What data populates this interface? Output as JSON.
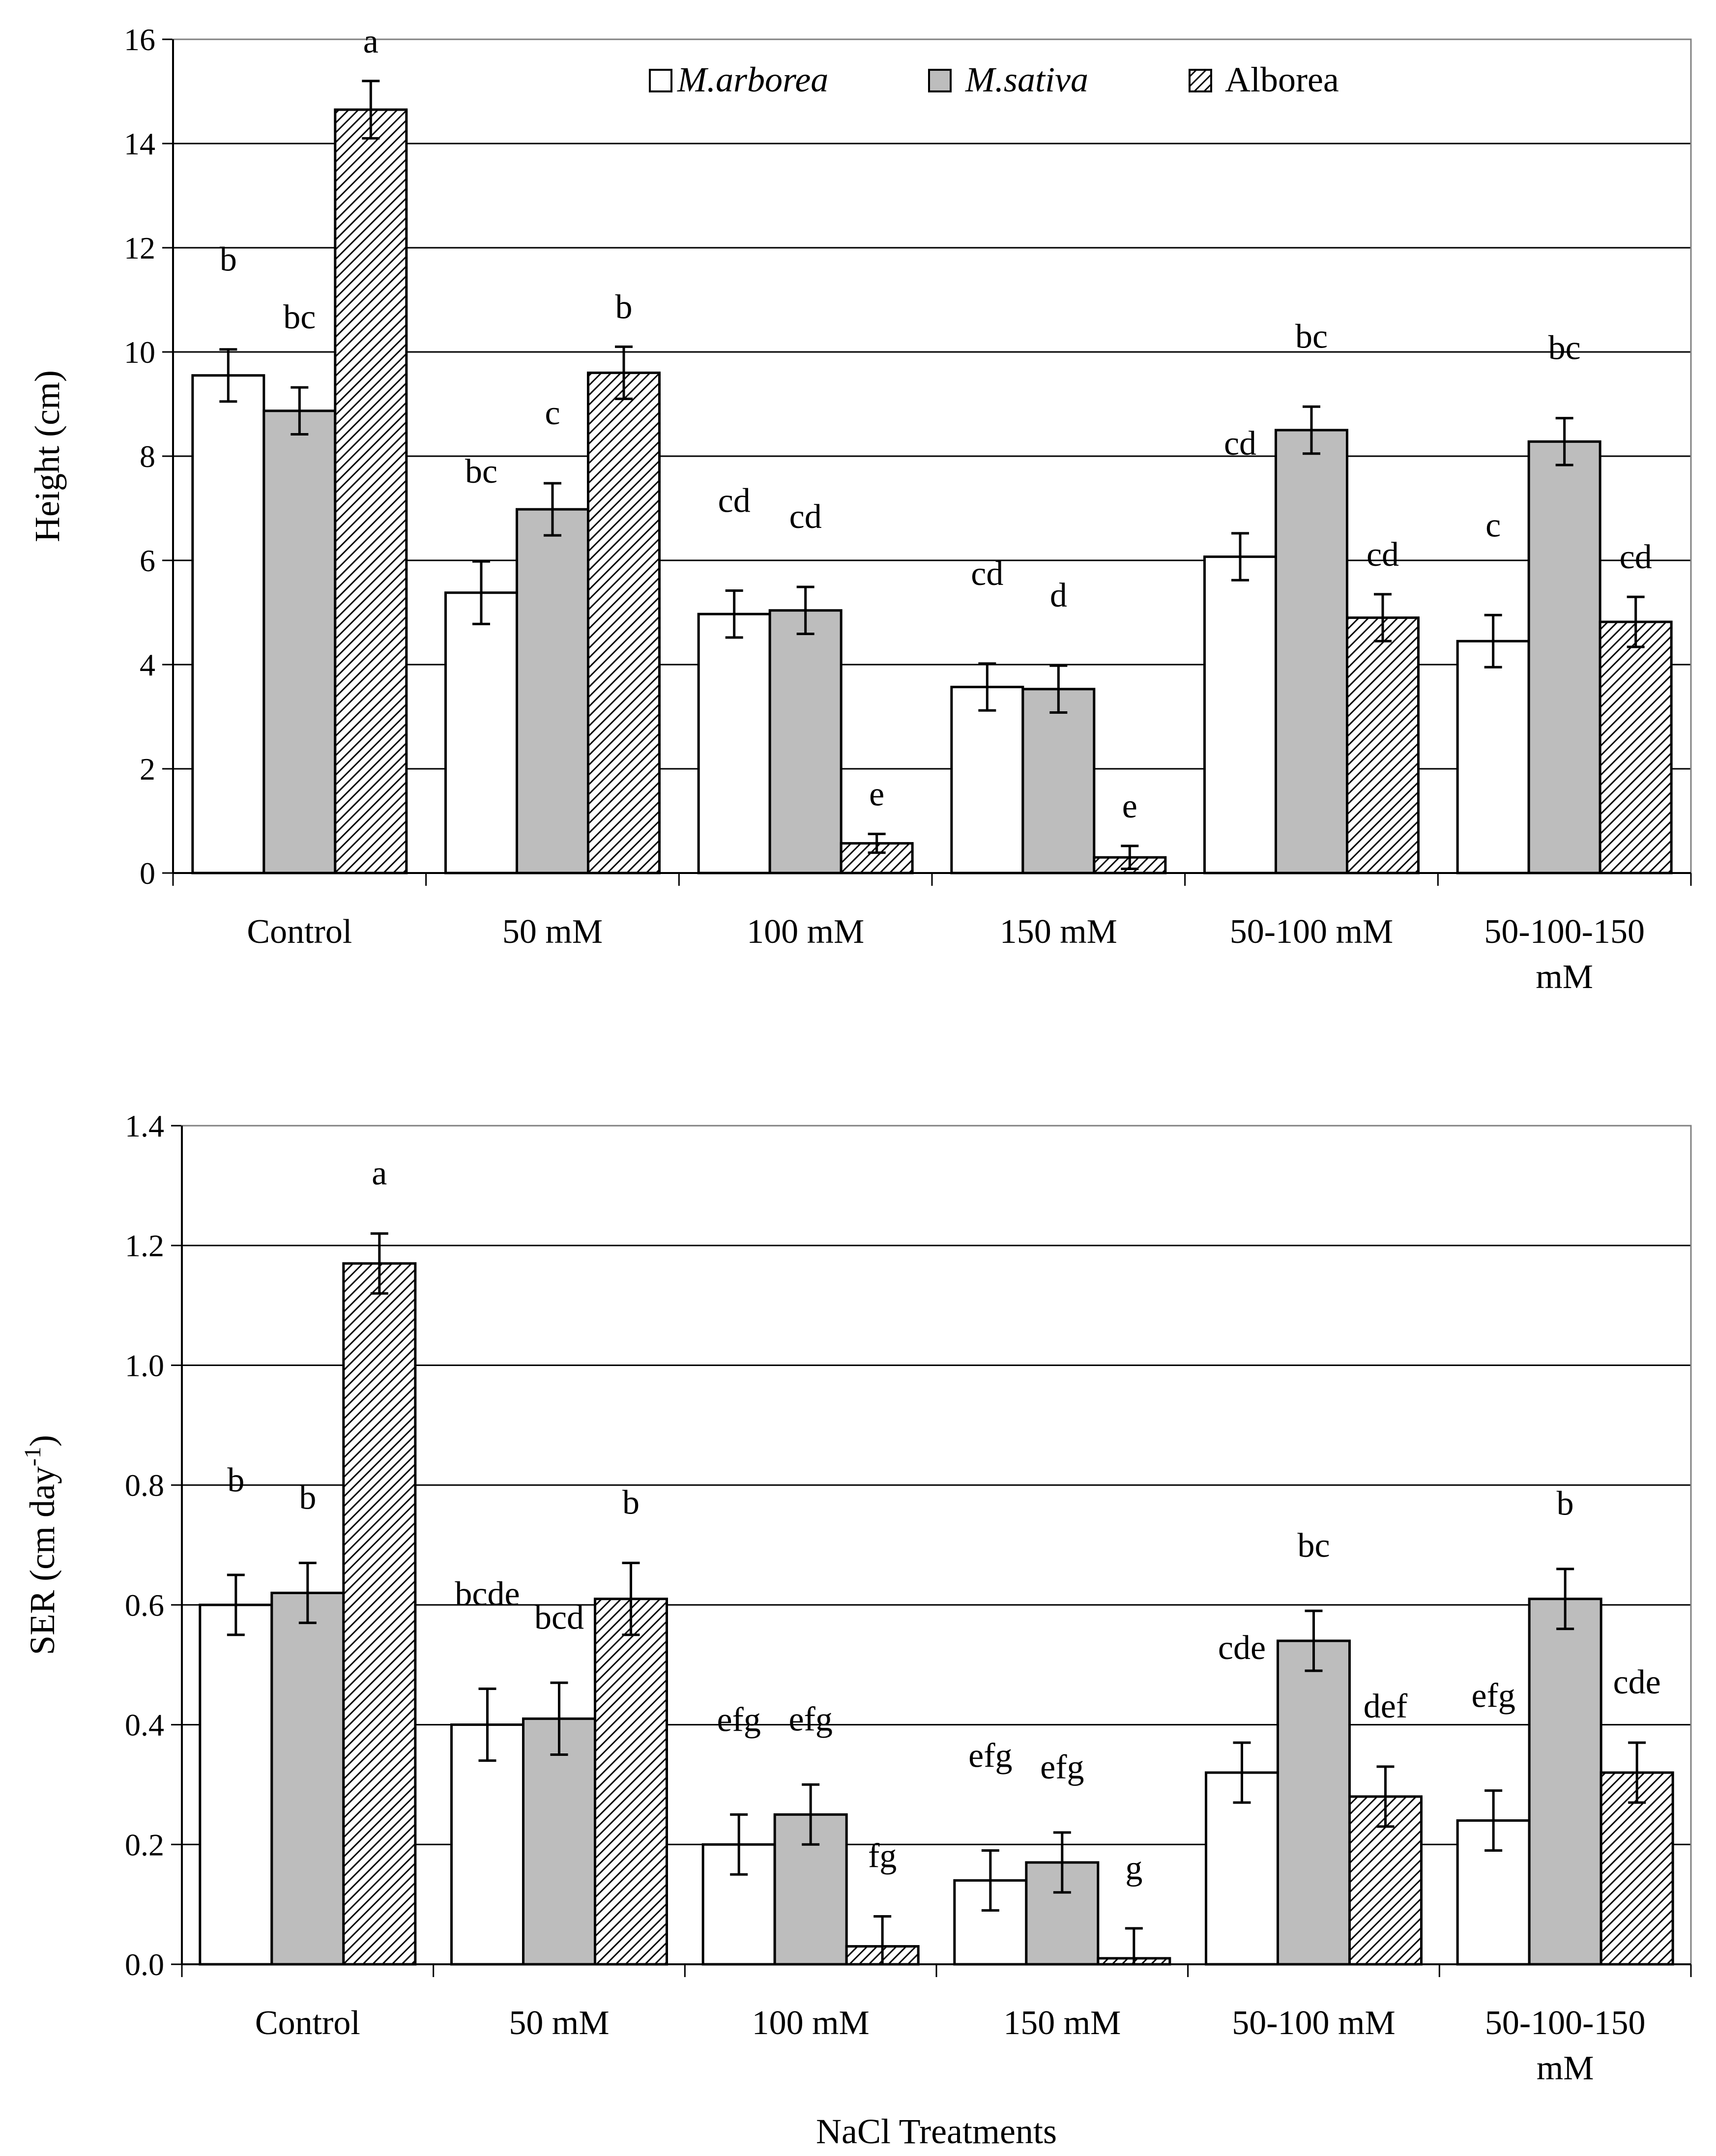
{
  "chart_data": [
    {
      "type": "bar",
      "ylabel": "Height (cm)",
      "xlabel": "",
      "ylim": [
        0,
        16
      ],
      "yticks": [
        0,
        2,
        4,
        6,
        8,
        10,
        12,
        14,
        16
      ],
      "ytick_labels": [
        "0",
        "2",
        "4",
        "6",
        "8",
        "10",
        "12",
        "14",
        "16"
      ],
      "grid": true,
      "legend_position": "top-right",
      "categories": [
        [
          "Control"
        ],
        [
          "50 mM"
        ],
        [
          "100 mM"
        ],
        [
          "150 mM"
        ],
        [
          "50-100 mM"
        ],
        [
          "50-100-150",
          "mM"
        ]
      ],
      "series": [
        {
          "name": "M.arborea",
          "italic": true,
          "fill": "white",
          "values": [
            9.55,
            5.38,
            4.97,
            3.57,
            6.07,
            4.45
          ],
          "errors": [
            0.5,
            0.6,
            0.45,
            0.45,
            0.45,
            0.5
          ],
          "letters": [
            "b",
            "bc",
            "cd",
            "cd",
            "cd",
            "c"
          ]
        },
        {
          "name": "M.sativa",
          "italic": true,
          "fill": "gray",
          "values": [
            8.87,
            6.98,
            5.04,
            3.53,
            8.5,
            8.28
          ],
          "errors": [
            0.45,
            0.5,
            0.45,
            0.45,
            0.45,
            0.45
          ],
          "letters": [
            "bc",
            "c",
            "cd",
            "d",
            "bc",
            "bc"
          ]
        },
        {
          "name": "Alborea",
          "italic": false,
          "fill": "hatch",
          "values": [
            14.65,
            9.6,
            0.57,
            0.3,
            4.9,
            4.82
          ],
          "errors": [
            0.55,
            0.5,
            0.18,
            0.22,
            0.45,
            0.48
          ],
          "letters": [
            "a",
            "b",
            "e",
            "e",
            "cd",
            "cd"
          ]
        }
      ]
    },
    {
      "type": "bar",
      "ylabel": "SER (cm day-1)",
      "ylabel_main": "SER (cm day",
      "ylabel_sup": "-1",
      "ylabel_close": ")",
      "xlabel": "NaCl Treatments",
      "ylim": [
        0,
        1.4
      ],
      "yticks": [
        0,
        0.2,
        0.4,
        0.6,
        0.8,
        1.0,
        1.2,
        1.4
      ],
      "ytick_labels": [
        "0.0",
        "0.2",
        "0.4",
        "0.6",
        "0.8",
        "1.0",
        "1.2",
        "1.4"
      ],
      "grid": true,
      "categories": [
        [
          "Control"
        ],
        [
          "50 mM"
        ],
        [
          "100 mM"
        ],
        [
          "150 mM"
        ],
        [
          "50-100 mM"
        ],
        [
          "50-100-150",
          "mM"
        ]
      ],
      "series": [
        {
          "name": "M.arborea",
          "fill": "white",
          "values": [
            0.6,
            0.4,
            0.2,
            0.14,
            0.32,
            0.24
          ],
          "errors": [
            0.05,
            0.06,
            0.05,
            0.05,
            0.05,
            0.05
          ],
          "letters": [
            "b",
            "bcde",
            "efg",
            "efg",
            "cde",
            "efg"
          ]
        },
        {
          "name": "M.sativa",
          "fill": "gray",
          "values": [
            0.62,
            0.41,
            0.25,
            0.17,
            0.54,
            0.61
          ],
          "errors": [
            0.05,
            0.06,
            0.05,
            0.05,
            0.05,
            0.05
          ],
          "letters": [
            "b",
            "bcd",
            "efg",
            "efg",
            "bc",
            "b"
          ]
        },
        {
          "name": "Alborea",
          "fill": "hatch",
          "values": [
            1.17,
            0.61,
            0.03,
            0.01,
            0.28,
            0.32
          ],
          "errors": [
            0.05,
            0.06,
            0.05,
            0.05,
            0.05,
            0.05
          ],
          "letters": [
            "a",
            "b",
            "fg",
            "g",
            "def",
            "cde"
          ]
        }
      ]
    }
  ]
}
